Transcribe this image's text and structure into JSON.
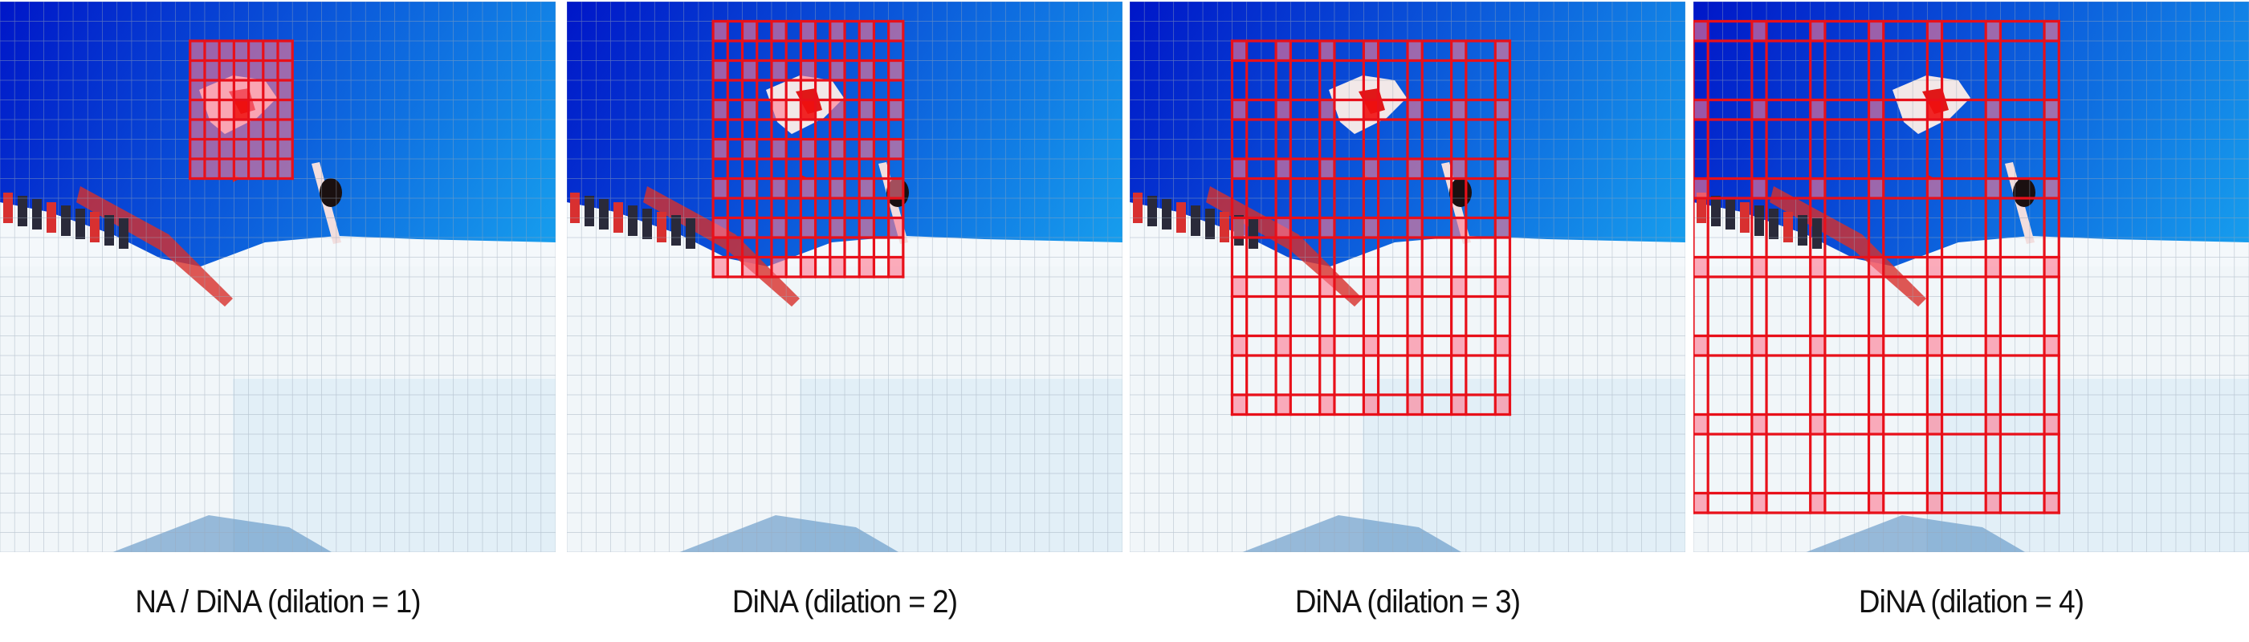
{
  "figure": {
    "panels": [
      {
        "caption": "NA / DiNA (dilation = 1)",
        "dilation": 1,
        "kernel_size": 7
      },
      {
        "caption": "DiNA (dilation = 2)",
        "dilation": 2,
        "kernel_size": 7
      },
      {
        "caption": "DiNA (dilation = 3)",
        "dilation": 3,
        "kernel_size": 7
      },
      {
        "caption": "DiNA (dilation = 4)",
        "dilation": 4,
        "kernel_size": 7
      }
    ],
    "colors": {
      "window_outline": "#e8101a",
      "attended_fill": "#ff7890",
      "query_fill": "#f01010",
      "sky_top": "#0016c8",
      "sky_bottom": "#18a8f0"
    }
  }
}
